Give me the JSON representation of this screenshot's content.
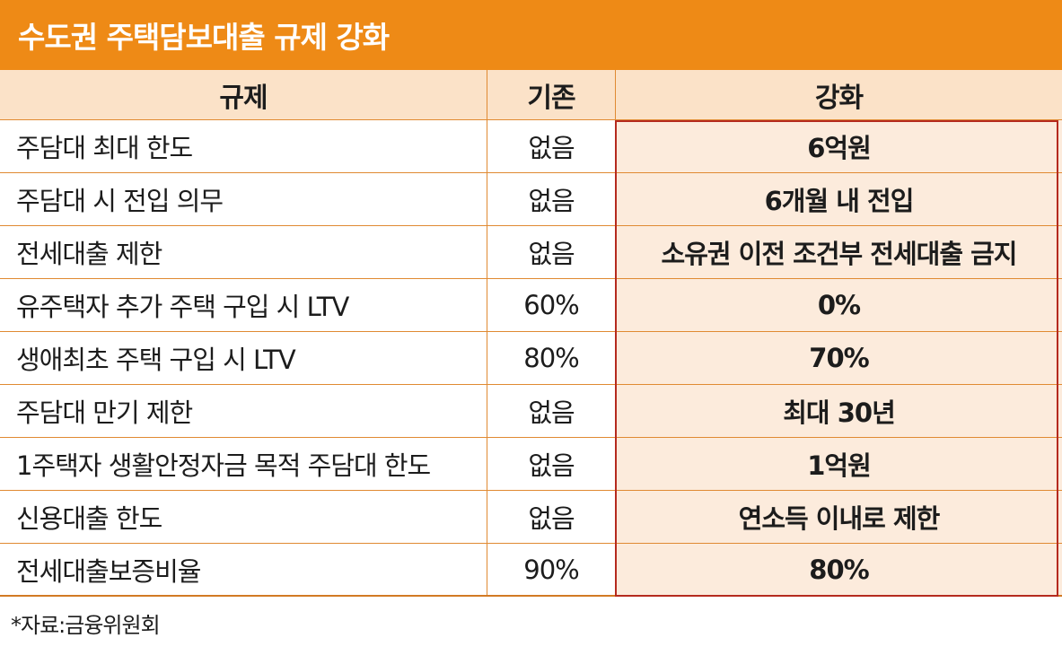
{
  "title": "수도권 주택담보대출 규제 강화",
  "headers": {
    "rule": "규제",
    "before": "기존",
    "after": "강화"
  },
  "rows": [
    {
      "rule": "주담대 최대 한도",
      "before": "없음",
      "after": "6억원"
    },
    {
      "rule": "주담대 시 전입 의무",
      "before": "없음",
      "after": "6개월 내 전입"
    },
    {
      "rule": "전세대출 제한",
      "before": "없음",
      "after": "소유권 이전 조건부 전세대출 금지"
    },
    {
      "rule": "유주택자 추가 주택 구입 시 LTV",
      "before": "60%",
      "after": "0%"
    },
    {
      "rule": "생애최초 주택 구입 시 LTV",
      "before": "80%",
      "after": "70%"
    },
    {
      "rule": "주담대 만기 제한",
      "before": "없음",
      "after": "최대 30년"
    },
    {
      "rule": "1주택자 생활안정자금 목적 주담대 한도",
      "before": "없음",
      "after": "1억원"
    },
    {
      "rule": "신용대출 한도",
      "before": "없음",
      "after": "연소득 이내로 제한"
    },
    {
      "rule": "전세대출보증비율",
      "before": "90%",
      "after": "80%"
    }
  ],
  "source": "*자료:금융위원회",
  "colors": {
    "title_bg": "#ee8a16",
    "header_bg": "#fbe2c8",
    "highlight_bg": "#fcebdc",
    "highlight_border": "#b52a1e"
  }
}
